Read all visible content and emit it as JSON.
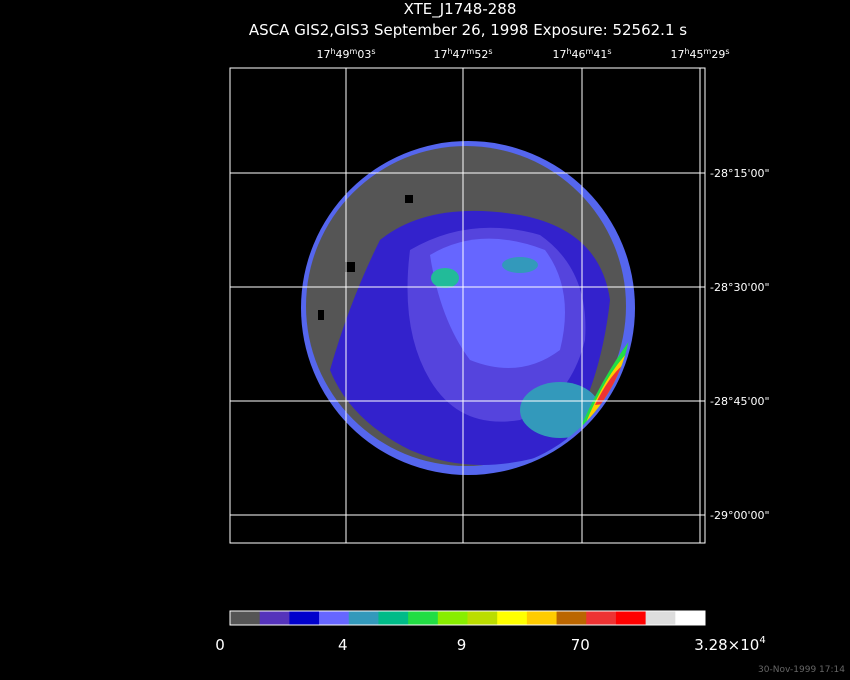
{
  "header": {
    "title": "XTE_J1748-288",
    "subtitle": "ASCA GIS2,GIS3 September 26, 1998 Exposure: 52562.1 s"
  },
  "ra_labels": [
    [
      "17",
      "h",
      "49",
      "m",
      "03",
      "s"
    ],
    [
      "17",
      "h",
      "47",
      "m",
      "52",
      "s"
    ],
    [
      "17",
      "h",
      "46",
      "m",
      "41",
      "s"
    ],
    [
      "17",
      "h",
      "45",
      "m",
      "29",
      "s"
    ]
  ],
  "dec_labels": [
    "-28°15'00\"",
    "-28°30'00\"",
    "-28°45'00\"",
    "-29°00'00\""
  ],
  "colorbar": {
    "colors": [
      "#555555",
      "#5533bb",
      "#0000cc",
      "#6666ff",
      "#3399bb",
      "#00bb88",
      "#22dd44",
      "#88ee00",
      "#bbdd00",
      "#ffff00",
      "#ffcc00",
      "#bb6600",
      "#ee3333",
      "#ff0000",
      "#dddddd",
      "#ffffff"
    ],
    "labels": [
      "0",
      "4",
      "9",
      "70",
      [
        "3.28×10",
        "4"
      ]
    ]
  },
  "timestamp": "30-Nov-1999 17:14"
}
